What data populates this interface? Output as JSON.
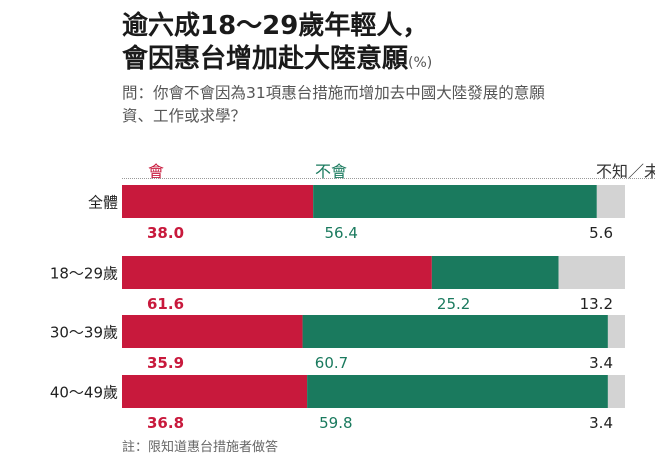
{
  "title": {
    "line1": "逾六成18～29歲年輕人，",
    "line2": "會因惠台增加赴大陸意願",
    "unit": "(%)"
  },
  "question": {
    "line1": "問：你會不會因為31項惠台措施而增加去中國大陸發展的意願",
    "line2": "資、工作或求學？"
  },
  "note": "註：限知道惠台措施者做答",
  "colors": {
    "yes": "#c8193c",
    "no": "#1a7a5e",
    "unknown": "#d3d3d3"
  },
  "chart_data": {
    "type": "bar",
    "orientation": "horizontal",
    "stacked": true,
    "categories": [
      "全體",
      "18～29歲",
      "30～39歲",
      "40～49歲"
    ],
    "series": [
      {
        "name": "會",
        "values": [
          38.0,
          61.6,
          35.9,
          36.8
        ]
      },
      {
        "name": "不會",
        "values": [
          56.4,
          25.2,
          60.7,
          59.8
        ]
      },
      {
        "name": "不知／未答",
        "values": [
          5.6,
          13.2,
          3.4,
          3.4
        ]
      }
    ],
    "value_labels": [
      [
        "38.0",
        "61.6",
        "35.9",
        "36.8"
      ],
      [
        "56.4",
        "25.2",
        "60.7",
        "59.8"
      ],
      [
        "5.6",
        "13.2",
        "3.4",
        "3.4"
      ]
    ],
    "xlim": [
      0,
      100
    ],
    "legend_position": "top"
  }
}
